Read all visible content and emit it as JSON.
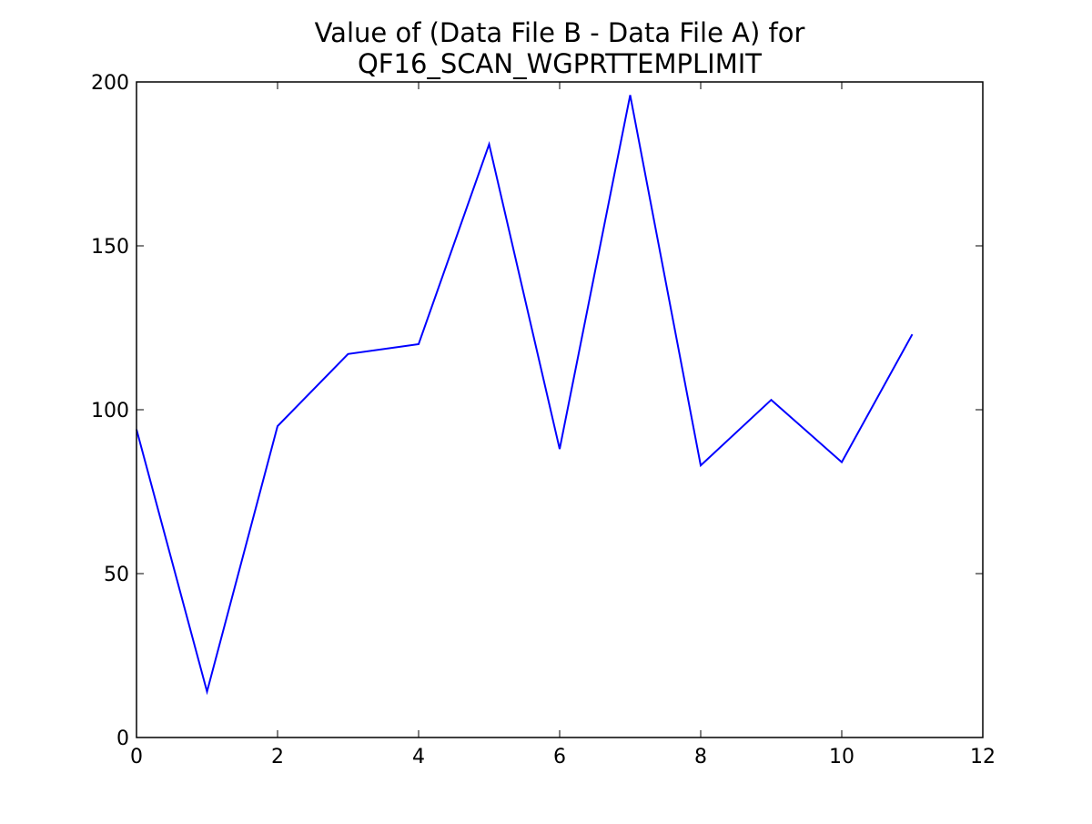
{
  "chart_data": {
    "type": "line",
    "title_lines": [
      "Value of (Data File B - Data File A) for",
      "QF16_SCAN_WGPRTTEMPLIMIT"
    ],
    "xlabel": "",
    "ylabel": "",
    "xlim": [
      0,
      12
    ],
    "ylim": [
      0,
      200
    ],
    "xticks": [
      0,
      2,
      4,
      6,
      8,
      10,
      12
    ],
    "yticks": [
      0,
      50,
      100,
      150,
      200
    ],
    "x_tick_labels": [
      "0",
      "2",
      "4",
      "6",
      "8",
      "10",
      "12"
    ],
    "y_tick_labels": [
      "0",
      "50",
      "100",
      "150",
      "200"
    ],
    "grid": false,
    "legend": "none",
    "series": [
      {
        "color": "#0000ff",
        "x": [
          0,
          1,
          2,
          3,
          4,
          5,
          6,
          7,
          8,
          9,
          10,
          11
        ],
        "y": [
          94,
          14,
          95,
          117,
          120,
          181,
          88,
          196,
          83,
          103,
          84,
          123
        ]
      }
    ]
  }
}
